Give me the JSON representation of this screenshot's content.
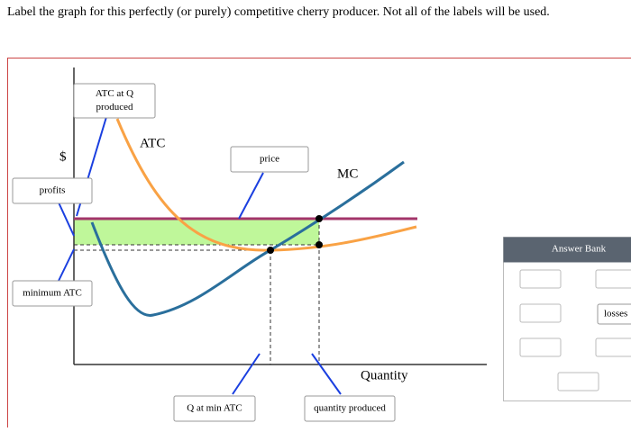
{
  "instruction": "Label the graph for this perfectly (or purely) competitive cherry producer. Not all of the labels will be used.",
  "graph": {
    "y_axis_label": "$",
    "x_axis_label": "Quantity",
    "curves": [
      "ATC",
      "MC"
    ]
  },
  "labels": [
    {
      "lines": [
        "ATC at Q",
        "produced"
      ]
    },
    {
      "lines": [
        "price"
      ]
    },
    {
      "lines": [
        "profits"
      ]
    },
    {
      "lines": [
        "minimum ATC"
      ]
    },
    {
      "lines": [
        "Q at min ATC"
      ]
    },
    {
      "lines": [
        "quantity produced"
      ]
    }
  ],
  "answer_bank": {
    "title": "Answer Bank",
    "items": [
      "losses"
    ]
  }
}
